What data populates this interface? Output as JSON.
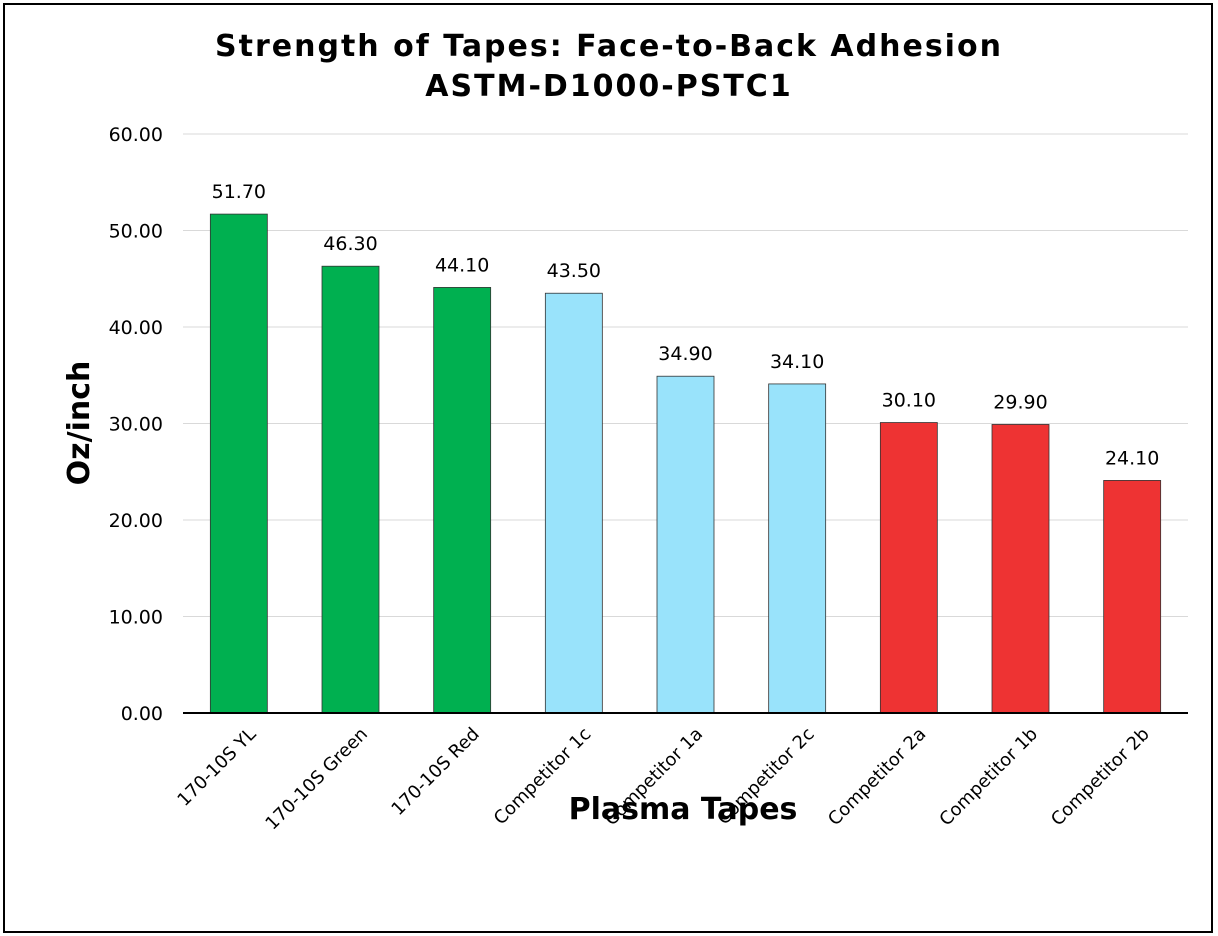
{
  "chart_data": {
    "type": "bar",
    "title": "Strength of Tapes: Face-to-Back Adhesion",
    "subtitle": "ASTM-D1000-PSTC1",
    "xlabel": "Plasma Tapes",
    "ylabel": "Oz/inch",
    "ylim": [
      0,
      60
    ],
    "yticks": [
      "0.00",
      "10.00",
      "20.00",
      "30.00",
      "40.00",
      "50.00",
      "60.00"
    ],
    "grid": true,
    "categories": [
      "170-10S YL",
      "170-10S Green",
      "170-10S Red",
      "Competitor 1c",
      "Competitor 1a",
      "Competitor 2c",
      "Competitor 2a",
      "Competitor 1b",
      "Competitor 2b"
    ],
    "values": [
      51.7,
      46.3,
      44.1,
      43.5,
      34.9,
      34.1,
      30.1,
      29.9,
      24.1
    ],
    "value_labels": [
      "51.70",
      "46.30",
      "44.10",
      "43.50",
      "34.90",
      "34.10",
      "30.10",
      "29.90",
      "24.10"
    ],
    "bar_colors": [
      "#00B050",
      "#00B050",
      "#00B050",
      "#99E3FB",
      "#99E3FB",
      "#99E3FB",
      "#EE3333",
      "#EE3333",
      "#EE3333"
    ],
    "grid_color": "#D9D9D9",
    "axis_color": "#000000"
  }
}
